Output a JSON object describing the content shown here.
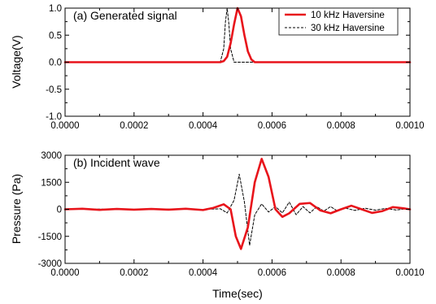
{
  "chart_data": [
    {
      "type": "line",
      "annotation": "(a) Generated signal",
      "xlabel": "",
      "ylabel": "Voltage(V)",
      "xlim": [
        0,
        0.001
      ],
      "ylim": [
        -1.0,
        1.0
      ],
      "xticks": [
        "0.0000",
        "0.0002",
        "0.0004",
        "0.0006",
        "0.0008",
        "0.0010"
      ],
      "yticks": [
        "-1.0",
        "-0.5",
        "0.0",
        "0.5",
        "1.0"
      ],
      "legend_position": "top-right",
      "grid": false,
      "series": [
        {
          "name": "10 kHz Haversine",
          "color": "#e8141b",
          "style": "solid",
          "x": [
            0,
            0.00045,
            0.00046,
            0.00047,
            0.00048,
            0.00049,
            0.0005,
            0.00051,
            0.00052,
            0.00053,
            0.00054,
            0.00055,
            0.001
          ],
          "y": [
            0,
            0,
            0.02,
            0.1,
            0.35,
            0.7,
            1.0,
            0.85,
            0.5,
            0.2,
            0.05,
            0,
            0
          ]
        },
        {
          "name": "30 kHz Haversine",
          "color": "#000000",
          "style": "dashed",
          "x": [
            0,
            0.00045,
            0.00046,
            0.000465,
            0.00047,
            0.000475,
            0.00048,
            0.00049,
            0.001
          ],
          "y": [
            0,
            0,
            0.25,
            0.75,
            1.0,
            0.7,
            0.25,
            0,
            0
          ]
        }
      ]
    },
    {
      "type": "line",
      "annotation": "(b) Incident wave",
      "xlabel": "Time(sec)",
      "ylabel": "Pressure (Pa)",
      "xlim": [
        0,
        0.001
      ],
      "ylim": [
        -3000,
        3000
      ],
      "xticks": [
        "0.0000",
        "0.0002",
        "0.0004",
        "0.0006",
        "0.0008",
        "0.0010"
      ],
      "yticks": [
        "-3000",
        "-1500",
        "0",
        "1500",
        "3000"
      ],
      "grid": false,
      "series": [
        {
          "name": "10 kHz Haversine",
          "color": "#e8141b",
          "style": "solid",
          "x": [
            0,
            5e-05,
            0.0001,
            0.00015,
            0.0002,
            0.00025,
            0.0003,
            0.00035,
            0.0004,
            0.00043,
            0.00046,
            0.00048,
            0.000495,
            0.00051,
            0.00053,
            0.00055,
            0.00057,
            0.00059,
            0.00061,
            0.00063,
            0.00065,
            0.00068,
            0.00071,
            0.00074,
            0.00077,
            0.0008,
            0.00083,
            0.00086,
            0.00089,
            0.00092,
            0.00095,
            0.00098,
            0.001
          ],
          "y": [
            0,
            30,
            -30,
            20,
            -20,
            20,
            -20,
            30,
            -40,
            80,
            280,
            0,
            -1500,
            -2200,
            -1000,
            1500,
            2800,
            1800,
            0,
            -420,
            -220,
            300,
            350,
            -60,
            -220,
            0,
            200,
            0,
            -200,
            -100,
            120,
            60,
            0
          ]
        },
        {
          "name": "30 kHz Haversine",
          "color": "#000000",
          "style": "dashed",
          "x": [
            0,
            0.0001,
            0.0002,
            0.0003,
            0.0004,
            0.00045,
            0.00047,
            0.00049,
            0.000505,
            0.00052,
            0.000535,
            0.00055,
            0.00057,
            0.00059,
            0.00061,
            0.00063,
            0.00065,
            0.00067,
            0.00069,
            0.00071,
            0.00073,
            0.00075,
            0.00077,
            0.00079,
            0.00081,
            0.00084,
            0.00087,
            0.0009,
            0.00093,
            0.00096,
            0.00099,
            0.001
          ],
          "y": [
            0,
            10,
            -10,
            10,
            -10,
            30,
            -200,
            500,
            1950,
            400,
            -2000,
            -300,
            300,
            -150,
            150,
            -200,
            400,
            -300,
            150,
            -200,
            150,
            -100,
            150,
            -100,
            80,
            -60,
            60,
            -50,
            50,
            -40,
            30,
            0
          ]
        }
      ]
    }
  ]
}
